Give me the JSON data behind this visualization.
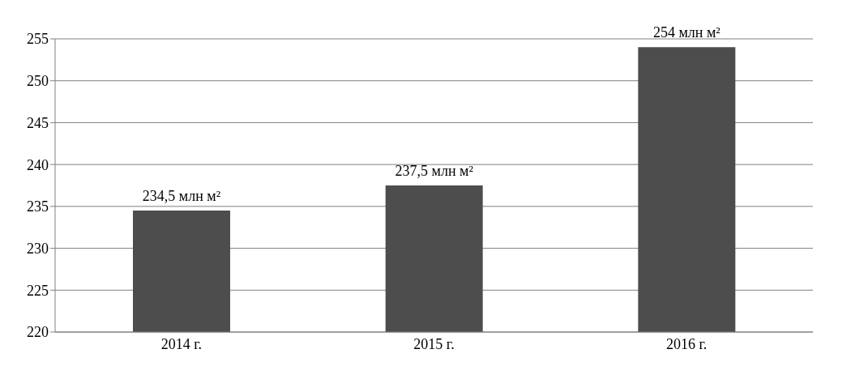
{
  "chart_data": {
    "type": "bar",
    "categories": [
      "2014 г.",
      "2015 г.",
      "2016 г."
    ],
    "values": [
      234.5,
      237.5,
      254
    ],
    "color": "#4d4d4d",
    "value_labels": [
      "234,5 млн м²",
      "237,5 млн м²",
      "254 млн м²"
    ],
    "ylim": [
      220,
      255
    ],
    "yticks": [
      220,
      225,
      230,
      235,
      240,
      245,
      250,
      255
    ],
    "grid": "y"
  }
}
